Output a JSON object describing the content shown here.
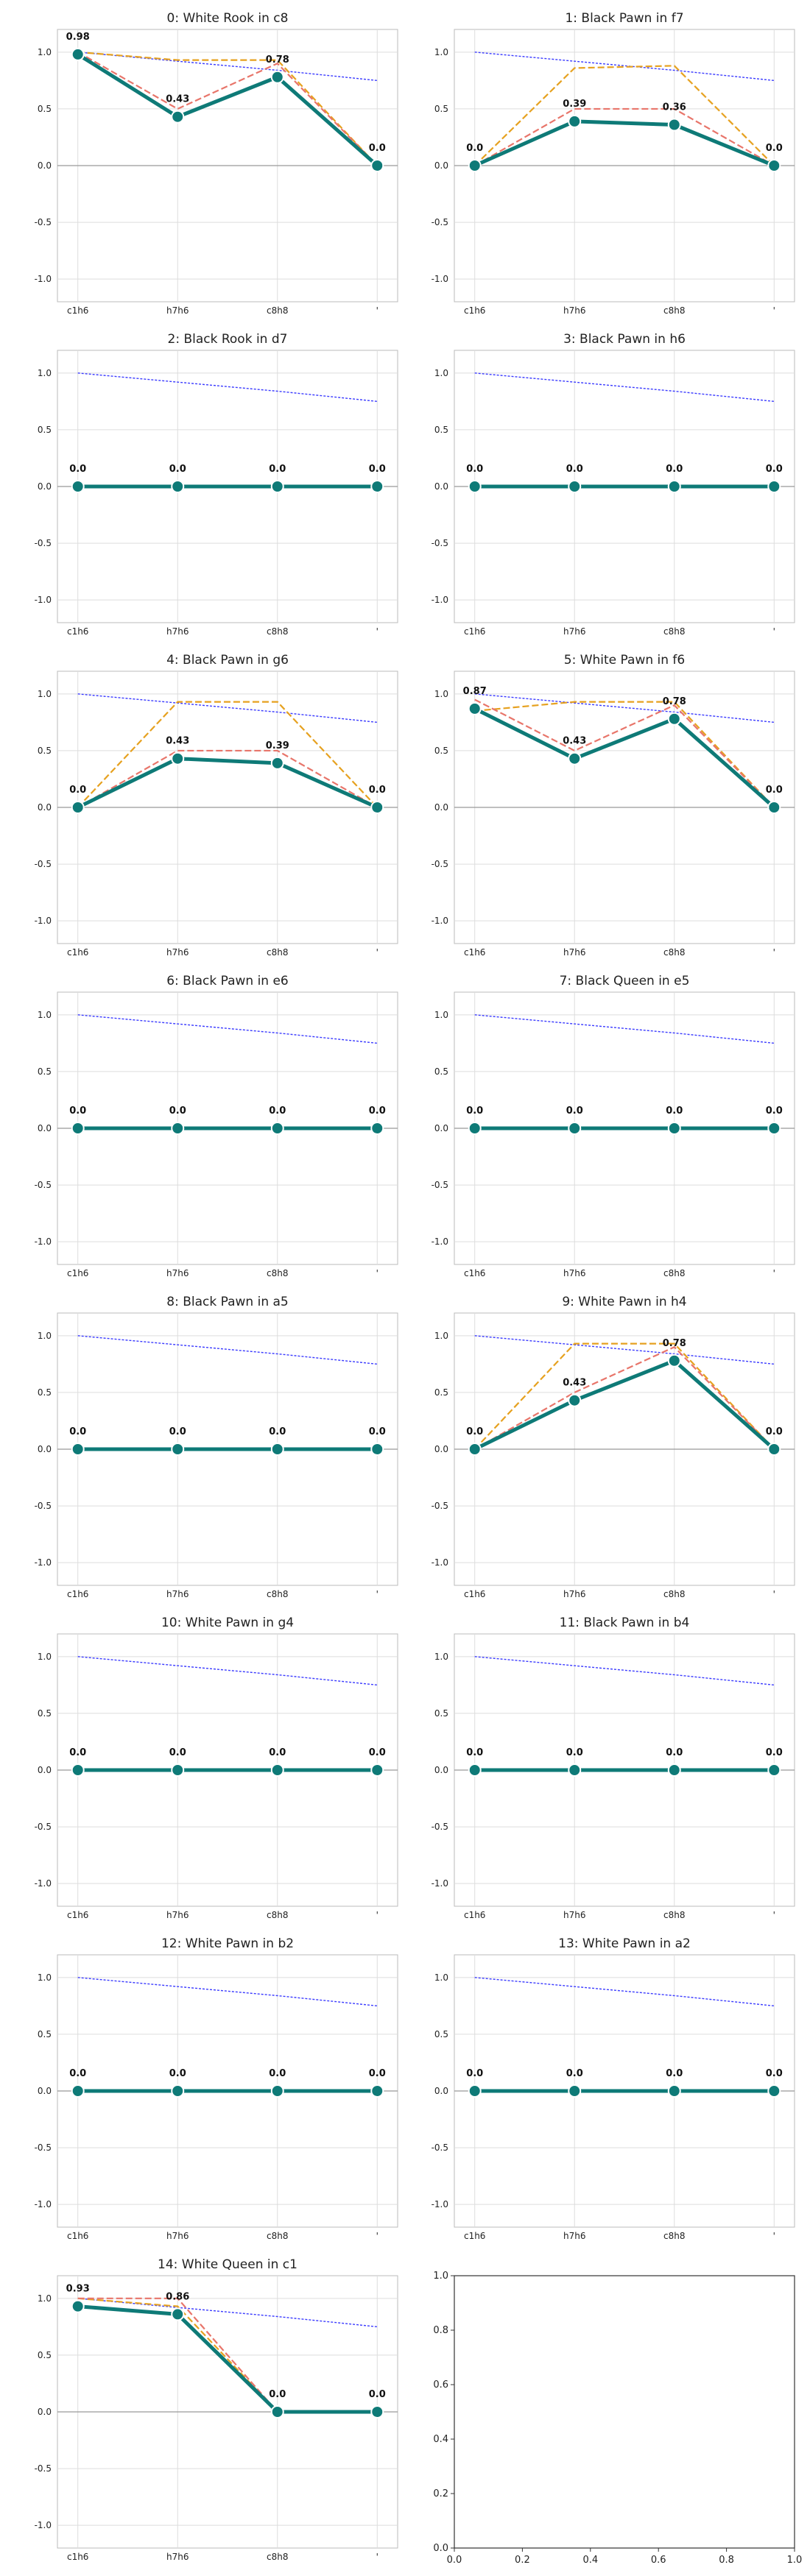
{
  "figure": {
    "x_ticks": [
      "c1h6",
      "h7h6",
      "c8h8",
      "'"
    ],
    "y_ticks": [
      "1.0",
      "0.5",
      "0.0",
      "-0.5",
      "-1.0"
    ],
    "blank_ticks_x": [
      "0.0",
      "0.2",
      "0.4",
      "0.6",
      "0.8",
      "1.0"
    ],
    "blank_ticks_y": [
      "0.0",
      "0.2",
      "0.4",
      "0.6",
      "0.8",
      "1.0"
    ],
    "colors": {
      "main": "#0e7a77",
      "dashed_red": "#e8756a",
      "dashed_orange": "#e6a11f",
      "reference_blue": "#3b3bff",
      "zero_line": "#999999",
      "grid": "#dddddd",
      "frame": "#bbbbbb"
    }
  },
  "chart_data": [
    {
      "type": "line",
      "title": "0: White Rook in c8",
      "x": [
        "c1h6",
        "h7h6",
        "c8h8",
        "'"
      ],
      "ylim": [
        -1.2,
        1.2
      ],
      "series": [
        {
          "values": [
            0.98,
            0.43,
            0.78,
            0.0
          ]
        },
        {
          "values": [
            1.0,
            0.5,
            0.9,
            0.0
          ]
        },
        {
          "values": [
            1.0,
            0.93,
            0.93,
            0.0
          ]
        },
        {
          "values": [
            1.0,
            0.92,
            0.84,
            0.75
          ]
        }
      ],
      "labels": [
        "0.98",
        "0.43",
        "0.78",
        "0.0"
      ]
    },
    {
      "type": "line",
      "title": "1: Black Pawn in f7",
      "x": [
        "c1h6",
        "h7h6",
        "c8h8",
        "'"
      ],
      "ylim": [
        -1.2,
        1.2
      ],
      "series": [
        {
          "values": [
            0.0,
            0.39,
            0.36,
            0.0
          ]
        },
        {
          "values": [
            0.0,
            0.5,
            0.5,
            0.0
          ]
        },
        {
          "values": [
            0.0,
            0.86,
            0.88,
            0.0
          ]
        },
        {
          "values": [
            1.0,
            0.92,
            0.84,
            0.75
          ]
        }
      ],
      "labels": [
        "0.0",
        "0.39",
        "0.36",
        "0.0"
      ]
    },
    {
      "type": "line",
      "title": "2: Black Rook in d7",
      "x": [
        "c1h6",
        "h7h6",
        "c8h8",
        "'"
      ],
      "ylim": [
        -1.2,
        1.2
      ],
      "series": [
        {
          "values": [
            0.0,
            0.0,
            0.0,
            0.0
          ]
        },
        {
          "values": [
            0.0,
            0.0,
            0.0,
            0.0
          ]
        },
        {
          "values": [
            0.0,
            0.0,
            0.0,
            0.0
          ]
        },
        {
          "values": [
            1.0,
            0.92,
            0.84,
            0.75
          ]
        }
      ],
      "labels": [
        "0.0",
        "0.0",
        "0.0",
        "0.0"
      ]
    },
    {
      "type": "line",
      "title": "3: Black Pawn in h6",
      "x": [
        "c1h6",
        "h7h6",
        "c8h8",
        "'"
      ],
      "ylim": [
        -1.2,
        1.2
      ],
      "series": [
        {
          "values": [
            0.0,
            0.0,
            0.0,
            0.0
          ]
        },
        {
          "values": [
            0.0,
            0.0,
            0.0,
            0.0
          ]
        },
        {
          "values": [
            0.0,
            0.0,
            0.0,
            0.0
          ]
        },
        {
          "values": [
            1.0,
            0.92,
            0.84,
            0.75
          ]
        }
      ],
      "labels": [
        "0.0",
        "0.0",
        "0.0",
        "0.0"
      ]
    },
    {
      "type": "line",
      "title": "4: Black Pawn in g6",
      "x": [
        "c1h6",
        "h7h6",
        "c8h8",
        "'"
      ],
      "ylim": [
        -1.2,
        1.2
      ],
      "series": [
        {
          "values": [
            0.0,
            0.43,
            0.39,
            0.0
          ]
        },
        {
          "values": [
            0.0,
            0.5,
            0.5,
            0.0
          ]
        },
        {
          "values": [
            0.0,
            0.93,
            0.93,
            0.0
          ]
        },
        {
          "values": [
            1.0,
            0.92,
            0.84,
            0.75
          ]
        }
      ],
      "labels": [
        "0.0",
        "0.43",
        "0.39",
        "0.0"
      ]
    },
    {
      "type": "line",
      "title": "5: White Pawn in f6",
      "x": [
        "c1h6",
        "h7h6",
        "c8h8",
        "'"
      ],
      "ylim": [
        -1.2,
        1.2
      ],
      "series": [
        {
          "values": [
            0.87,
            0.43,
            0.78,
            0.0
          ]
        },
        {
          "values": [
            0.95,
            0.5,
            0.9,
            0.0
          ]
        },
        {
          "values": [
            0.85,
            0.93,
            0.93,
            0.0
          ]
        },
        {
          "values": [
            1.0,
            0.92,
            0.84,
            0.75
          ]
        }
      ],
      "labels": [
        "0.87",
        "0.43",
        "0.78",
        "0.0"
      ]
    },
    {
      "type": "line",
      "title": "6: Black Pawn in e6",
      "x": [
        "c1h6",
        "h7h6",
        "c8h8",
        "'"
      ],
      "ylim": [
        -1.2,
        1.2
      ],
      "series": [
        {
          "values": [
            0.0,
            0.0,
            0.0,
            0.0
          ]
        },
        {
          "values": [
            0.0,
            0.0,
            0.0,
            0.0
          ]
        },
        {
          "values": [
            0.0,
            0.0,
            0.0,
            0.0
          ]
        },
        {
          "values": [
            1.0,
            0.92,
            0.84,
            0.75
          ]
        }
      ],
      "labels": [
        "0.0",
        "0.0",
        "0.0",
        "0.0"
      ]
    },
    {
      "type": "line",
      "title": "7: Black Queen in e5",
      "x": [
        "c1h6",
        "h7h6",
        "c8h8",
        "'"
      ],
      "ylim": [
        -1.2,
        1.2
      ],
      "series": [
        {
          "values": [
            0.0,
            0.0,
            0.0,
            0.0
          ]
        },
        {
          "values": [
            0.0,
            0.0,
            0.0,
            0.0
          ]
        },
        {
          "values": [
            0.0,
            0.0,
            0.0,
            0.0
          ]
        },
        {
          "values": [
            1.0,
            0.92,
            0.84,
            0.75
          ]
        }
      ],
      "labels": [
        "0.0",
        "0.0",
        "0.0",
        "0.0"
      ]
    },
    {
      "type": "line",
      "title": "8: Black Pawn in a5",
      "x": [
        "c1h6",
        "h7h6",
        "c8h8",
        "'"
      ],
      "ylim": [
        -1.2,
        1.2
      ],
      "series": [
        {
          "values": [
            0.0,
            0.0,
            0.0,
            0.0
          ]
        },
        {
          "values": [
            0.0,
            0.0,
            0.0,
            0.0
          ]
        },
        {
          "values": [
            0.0,
            0.0,
            0.0,
            0.0
          ]
        },
        {
          "values": [
            1.0,
            0.92,
            0.84,
            0.75
          ]
        }
      ],
      "labels": [
        "0.0",
        "0.0",
        "0.0",
        "0.0"
      ]
    },
    {
      "type": "line",
      "title": "9: White Pawn in h4",
      "x": [
        "c1h6",
        "h7h6",
        "c8h8",
        "'"
      ],
      "ylim": [
        -1.2,
        1.2
      ],
      "series": [
        {
          "values": [
            0.0,
            0.43,
            0.78,
            0.0
          ]
        },
        {
          "values": [
            0.0,
            0.5,
            0.9,
            0.0
          ]
        },
        {
          "values": [
            0.0,
            0.93,
            0.93,
            0.0
          ]
        },
        {
          "values": [
            1.0,
            0.92,
            0.84,
            0.75
          ]
        }
      ],
      "labels": [
        "0.0",
        "0.43",
        "0.78",
        "0.0"
      ]
    },
    {
      "type": "line",
      "title": "10: White Pawn in g4",
      "x": [
        "c1h6",
        "h7h6",
        "c8h8",
        "'"
      ],
      "ylim": [
        -1.2,
        1.2
      ],
      "series": [
        {
          "values": [
            0.0,
            0.0,
            0.0,
            0.0
          ]
        },
        {
          "values": [
            0.0,
            0.0,
            0.0,
            0.0
          ]
        },
        {
          "values": [
            0.0,
            0.0,
            0.0,
            0.0
          ]
        },
        {
          "values": [
            1.0,
            0.92,
            0.84,
            0.75
          ]
        }
      ],
      "labels": [
        "0.0",
        "0.0",
        "0.0",
        "0.0"
      ]
    },
    {
      "type": "line",
      "title": "11: Black Pawn in b4",
      "x": [
        "c1h6",
        "h7h6",
        "c8h8",
        "'"
      ],
      "ylim": [
        -1.2,
        1.2
      ],
      "series": [
        {
          "values": [
            0.0,
            0.0,
            0.0,
            0.0
          ]
        },
        {
          "values": [
            0.0,
            0.0,
            0.0,
            0.0
          ]
        },
        {
          "values": [
            0.0,
            0.0,
            0.0,
            0.0
          ]
        },
        {
          "values": [
            1.0,
            0.92,
            0.84,
            0.75
          ]
        }
      ],
      "labels": [
        "0.0",
        "0.0",
        "0.0",
        "0.0"
      ]
    },
    {
      "type": "line",
      "title": "12: White Pawn in b2",
      "x": [
        "c1h6",
        "h7h6",
        "c8h8",
        "'"
      ],
      "ylim": [
        -1.2,
        1.2
      ],
      "series": [
        {
          "values": [
            0.0,
            0.0,
            0.0,
            0.0
          ]
        },
        {
          "values": [
            0.0,
            0.0,
            0.0,
            0.0
          ]
        },
        {
          "values": [
            0.0,
            0.0,
            0.0,
            0.0
          ]
        },
        {
          "values": [
            1.0,
            0.92,
            0.84,
            0.75
          ]
        }
      ],
      "labels": [
        "0.0",
        "0.0",
        "0.0",
        "0.0"
      ]
    },
    {
      "type": "line",
      "title": "13: White Pawn in a2",
      "x": [
        "c1h6",
        "h7h6",
        "c8h8",
        "'"
      ],
      "ylim": [
        -1.2,
        1.2
      ],
      "series": [
        {
          "values": [
            0.0,
            0.0,
            0.0,
            0.0
          ]
        },
        {
          "values": [
            0.0,
            0.0,
            0.0,
            0.0
          ]
        },
        {
          "values": [
            0.0,
            0.0,
            0.0,
            0.0
          ]
        },
        {
          "values": [
            1.0,
            0.92,
            0.84,
            0.75
          ]
        }
      ],
      "labels": [
        "0.0",
        "0.0",
        "0.0",
        "0.0"
      ]
    },
    {
      "type": "line",
      "title": "14: White Queen in c1",
      "x": [
        "c1h6",
        "h7h6",
        "c8h8",
        "'"
      ],
      "ylim": [
        -1.2,
        1.2
      ],
      "series": [
        {
          "values": [
            0.93,
            0.86,
            0.0,
            0.0
          ]
        },
        {
          "values": [
            1.0,
            1.0,
            0.0,
            0.0
          ]
        },
        {
          "values": [
            1.0,
            0.93,
            0.0,
            0.0
          ]
        },
        {
          "values": [
            1.0,
            0.92,
            0.84,
            0.75
          ]
        }
      ],
      "labels": [
        "0.93",
        "0.86",
        "0.0",
        "0.0"
      ]
    },
    {
      "type": "blank",
      "title": "",
      "xlim": [
        0,
        1
      ],
      "ylim": [
        0,
        1
      ]
    }
  ]
}
